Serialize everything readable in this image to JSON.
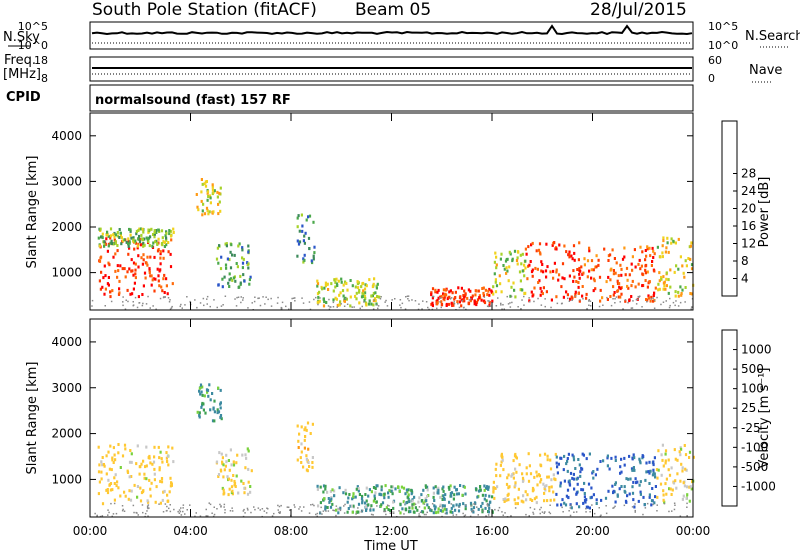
{
  "header": {
    "station": "South Pole Station (fitACF)",
    "beam": "Beam 05",
    "date": "28/Jul/2015"
  },
  "strip1": {
    "left_label": "N.Sky",
    "right_label": "N.Search",
    "left_ticks": [
      "10^5",
      "10^0"
    ],
    "right_ticks": [
      "10^5",
      "10^0"
    ]
  },
  "strip2": {
    "left_label": "Freq.",
    "left_unit": "[MHz]",
    "right_label": "Nave",
    "left_ticks": [
      "18",
      "8"
    ],
    "right_ticks": [
      "60",
      "0"
    ]
  },
  "cpid": {
    "label": "CPID",
    "text": "normalsound (fast) 157 RF"
  },
  "colors": {
    "power": [
      "#1e1eff",
      "#2a55c8",
      "#3c8a5a",
      "#4aa84a",
      "#a6d22a",
      "#f0d21e",
      "#ff9a14",
      "#ff6a0a",
      "#ff3a00",
      "#ff0000"
    ],
    "velocity": [
      "#ff0000",
      "#ff5a00",
      "#ff9a14",
      "#ffc832",
      "#c8c8c8",
      "#7ad23c",
      "#3ca050",
      "#3c8aa0",
      "#2a55c8",
      "#1e1eff"
    ]
  },
  "chart_data": [
    {
      "type": "heatmap",
      "title": "",
      "xlabel": "",
      "ylabel": "Slant Range [km]",
      "xlim": [
        "00:00",
        "00:00"
      ],
      "ylim": [
        180,
        4500
      ],
      "x_ticks": [
        "00:00",
        "04:00",
        "08:00",
        "12:00",
        "16:00",
        "20:00",
        "00:00"
      ],
      "y_ticks": [
        1000,
        2000,
        3000,
        4000
      ],
      "colorbar": {
        "label": "Power [dB]",
        "ticks": [
          4,
          8,
          12,
          16,
          20,
          24,
          28
        ],
        "range": [
          0,
          30
        ]
      },
      "regions": [
        {
          "t_start": 0.3,
          "t_end": 3.3,
          "r_low": 500,
          "r_high": 1800,
          "value": 26
        },
        {
          "t_start": 0.3,
          "t_end": 3.3,
          "r_low": 1600,
          "r_high": 2000,
          "value": 12
        },
        {
          "t_start": 4.2,
          "t_end": 5.2,
          "r_low": 2300,
          "r_high": 3100,
          "value": 16
        },
        {
          "t_start": 5.0,
          "t_end": 6.4,
          "r_low": 700,
          "r_high": 1700,
          "value": 10
        },
        {
          "t_start": 8.2,
          "t_end": 8.9,
          "r_low": 1200,
          "r_high": 2300,
          "value": 8
        },
        {
          "t_start": 9.0,
          "t_end": 11.5,
          "r_low": 300,
          "r_high": 900,
          "value": 14
        },
        {
          "t_start": 13.5,
          "t_end": 16.0,
          "r_low": 300,
          "r_high": 700,
          "value": 26
        },
        {
          "t_start": 16.0,
          "t_end": 17.3,
          "r_low": 500,
          "r_high": 1500,
          "value": 14
        },
        {
          "t_start": 17.3,
          "t_end": 19.5,
          "r_low": 400,
          "r_high": 1700,
          "value": 26
        },
        {
          "t_start": 19.5,
          "t_end": 22.5,
          "r_low": 400,
          "r_high": 1600,
          "value": 24
        },
        {
          "t_start": 22.5,
          "t_end": 24.0,
          "r_low": 500,
          "r_high": 1800,
          "value": 16
        }
      ]
    },
    {
      "type": "heatmap",
      "title": "",
      "xlabel": "Time UT",
      "ylabel": "Slant Range [km]",
      "xlim": [
        "00:00",
        "00:00"
      ],
      "ylim": [
        180,
        4500
      ],
      "x_ticks": [
        "00:00",
        "04:00",
        "08:00",
        "12:00",
        "16:00",
        "20:00",
        "00:00"
      ],
      "y_ticks": [
        1000,
        2000,
        3000,
        4000
      ],
      "colorbar": {
        "label": "Velocity [m s^-1]",
        "ticks": [
          1000,
          500,
          100,
          25,
          -25,
          -100,
          -500,
          -1000
        ]
      },
      "regions": [
        {
          "t_start": 0.3,
          "t_end": 3.3,
          "r_low": 500,
          "r_high": 1800,
          "value": -200
        },
        {
          "t_start": 4.2,
          "t_end": 5.2,
          "r_low": 2300,
          "r_high": 3100,
          "value": 200
        },
        {
          "t_start": 5.0,
          "t_end": 6.4,
          "r_low": 700,
          "r_high": 1700,
          "value": -150
        },
        {
          "t_start": 8.2,
          "t_end": 8.9,
          "r_low": 1200,
          "r_high": 2300,
          "value": -300
        },
        {
          "t_start": 9.0,
          "t_end": 14.0,
          "r_low": 300,
          "r_high": 900,
          "value": 80
        },
        {
          "t_start": 14.0,
          "t_end": 16.0,
          "r_low": 300,
          "r_high": 900,
          "value": 150
        },
        {
          "t_start": 16.0,
          "t_end": 18.5,
          "r_low": 500,
          "r_high": 1600,
          "value": -250
        },
        {
          "t_start": 18.5,
          "t_end": 22.5,
          "r_low": 400,
          "r_high": 1600,
          "value": 600
        },
        {
          "t_start": 22.5,
          "t_end": 24.0,
          "r_low": 500,
          "r_high": 1800,
          "value": -150
        }
      ]
    }
  ]
}
